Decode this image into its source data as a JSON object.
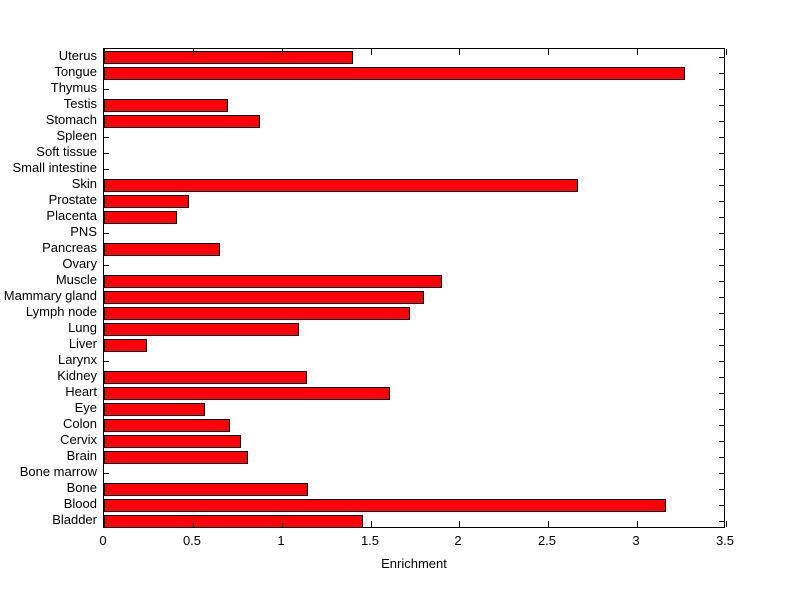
{
  "chart_data": {
    "type": "bar",
    "orientation": "horizontal",
    "title": "",
    "xlabel": "Enrichment",
    "ylabel": "",
    "xlim": [
      0,
      3.5
    ],
    "x_ticks": [
      0,
      0.5,
      1,
      1.5,
      2,
      2.5,
      3,
      3.5
    ],
    "x_tick_labels": [
      "0",
      "0.5",
      "1",
      "1.5",
      "2",
      "2.5",
      "3",
      "3.5"
    ],
    "grid": false,
    "legend": null,
    "bar_color": "#FF0000",
    "bar_edge_color": "#000000",
    "background_color": "#FFFFFF",
    "categories": [
      "Uterus",
      "Tongue",
      "Thymus",
      "Testis",
      "Stomach",
      "Spleen",
      "Soft tissue",
      "Small intestine",
      "Skin",
      "Prostate",
      "Placenta",
      "PNS",
      "Pancreas",
      "Ovary",
      "Muscle",
      "Mammary gland",
      "Lymph node",
      "Lung",
      "Liver",
      "Larynx",
      "Kidney",
      "Heart",
      "Eye",
      "Colon",
      "Cervix",
      "Brain",
      "Bone marrow",
      "Bone",
      "Blood",
      "Bladder"
    ],
    "values": [
      1.4,
      3.27,
      0,
      0.7,
      0.88,
      0,
      0,
      0,
      2.67,
      0.48,
      0.41,
      0,
      0.65,
      0,
      1.9,
      1.8,
      1.72,
      1.1,
      0.24,
      0,
      1.14,
      1.61,
      0.57,
      0.71,
      0.77,
      0.81,
      0,
      1.15,
      3.16,
      1.46
    ]
  }
}
